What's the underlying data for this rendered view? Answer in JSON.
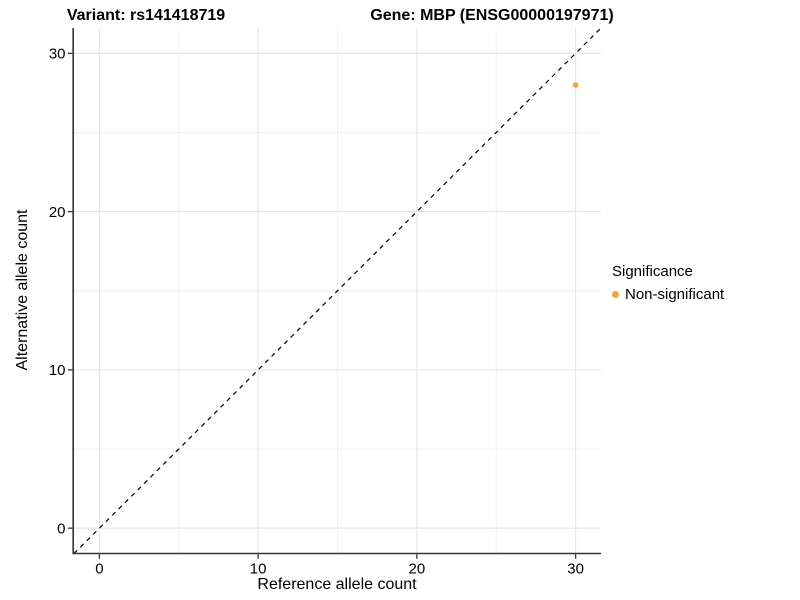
{
  "title": {
    "variant": "Variant: rs141418719",
    "gene": "Gene: MBP (ENSG00000197971)"
  },
  "chart_data": {
    "type": "scatter",
    "title": "Variant: rs141418719    Gene: MBP (ENSG00000197971)",
    "xlabel": "Reference allele count",
    "ylabel": "Alternative allele count",
    "xlim": [
      -1.6,
      31.6
    ],
    "ylim": [
      -1.6,
      31.6
    ],
    "xticks": [
      0,
      10,
      20,
      30
    ],
    "yticks": [
      0,
      10,
      20,
      30
    ],
    "xminor": [
      5,
      15,
      25
    ],
    "yminor": [
      5,
      15,
      25
    ],
    "grid": true,
    "legend_position": "right",
    "identity_line": {
      "style": "dashed",
      "color": "#000000",
      "from": -1.6,
      "to": 31.6
    },
    "series": [
      {
        "name": "Non-significant",
        "color": "#F9A13C",
        "points": [
          {
            "x": 30,
            "y": 28
          }
        ]
      }
    ]
  },
  "legend": {
    "title": "Significance",
    "items": [
      {
        "label": "Non-significant",
        "color": "#F9A13C"
      }
    ]
  },
  "colors": {
    "background": "#FFFFFF",
    "text": "#000000",
    "axis_line": "#333333",
    "tick_mark": "#333333",
    "grid_major": "#E6E6E6",
    "grid_minor": "#F0F0F0",
    "point": "#F9A13C",
    "identity_line": "#000000"
  }
}
